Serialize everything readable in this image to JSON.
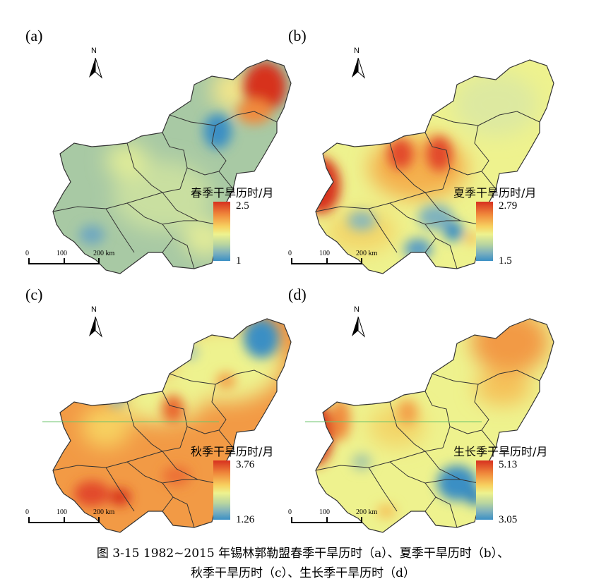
{
  "panels": [
    {
      "label": "(a)",
      "legend_title": "春季干旱历时/月",
      "legend_max": "2.5",
      "legend_min": "1",
      "color_ramp": [
        "#d7301f",
        "#f08a3c",
        "#f7d160",
        "#eef28e",
        "#b8d5a0",
        "#7fb2bd",
        "#3b8fc4"
      ],
      "scale": {
        "ticks": [
          "0",
          "100",
          "200 km"
        ]
      },
      "north": "N",
      "hotspots": [
        {
          "name": "northeast-high",
          "level": "high"
        },
        {
          "name": "east-low",
          "level": "low"
        },
        {
          "name": "south-low",
          "level": "low"
        }
      ]
    },
    {
      "label": "(b)",
      "legend_title": "夏季干旱历时/月",
      "legend_max": "2.79",
      "legend_min": "1.5",
      "color_ramp": [
        "#d7301f",
        "#f08a3c",
        "#f7d160",
        "#eef28e",
        "#b8d5a0",
        "#7fb2bd",
        "#3b8fc4"
      ],
      "scale": {
        "ticks": [
          "0",
          "100",
          "200 km"
        ]
      },
      "north": "N",
      "hotspots": [
        {
          "name": "west-high",
          "level": "high"
        },
        {
          "name": "central-high",
          "level": "high"
        },
        {
          "name": "southeast-low",
          "level": "low"
        }
      ]
    },
    {
      "label": "(c)",
      "legend_title": "秋季干旱历时/月",
      "legend_max": "3.76",
      "legend_min": "1.26",
      "color_ramp": [
        "#d7301f",
        "#f08a3c",
        "#f7d160",
        "#eef28e",
        "#b8d5a0",
        "#7fb2bd",
        "#3b8fc4"
      ],
      "scale": {
        "ticks": [
          "0",
          "100",
          "200 km"
        ]
      },
      "north": "N",
      "hotspots": [
        {
          "name": "northeast-low",
          "level": "low"
        },
        {
          "name": "south-high",
          "level": "high"
        }
      ]
    },
    {
      "label": "(d)",
      "legend_title": "生长季干旱历时/月",
      "legend_max": "5.13",
      "legend_min": "3.05",
      "color_ramp": [
        "#d7301f",
        "#f08a3c",
        "#f7d160",
        "#eef28e",
        "#b8d5a0",
        "#7fb2bd",
        "#3b8fc4"
      ],
      "scale": {
        "ticks": [
          "0",
          "100",
          "200 km"
        ]
      },
      "north": "N",
      "hotspots": [
        {
          "name": "west-high",
          "level": "high"
        },
        {
          "name": "northeast-high",
          "level": "high"
        },
        {
          "name": "southeast-low",
          "level": "low"
        }
      ]
    }
  ],
  "caption": {
    "line1": "图 3-15 1982~2015 年锡林郭勒盟春季干旱历时（a）、夏季干旱历时（b）、",
    "line2": "秋季干旱历时（c）、生长季干旱历时（d）"
  }
}
